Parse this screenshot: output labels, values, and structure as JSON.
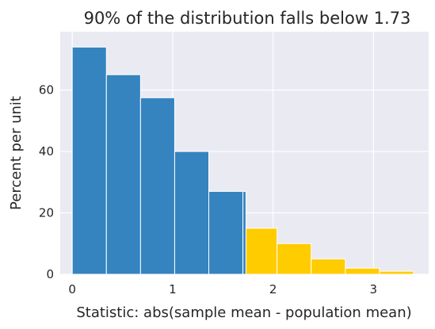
{
  "chart_data": {
    "type": "bar",
    "title": "90% of the distribution falls below 1.73",
    "xlabel": "Statistic: abs(sample mean - population mean)",
    "ylabel": "Percent per unit",
    "xlim": [
      -0.12,
      3.55
    ],
    "ylim": [
      0,
      79
    ],
    "xticks": [
      0,
      1,
      2,
      3
    ],
    "yticks": [
      0,
      20,
      40,
      60
    ],
    "grid": true,
    "background_color": "#eaeaf2",
    "colors": {
      "below": "#3584c0",
      "above": "#ffcc00"
    },
    "threshold": 1.73,
    "bins": [
      {
        "left": 0.0,
        "right": 0.34,
        "value": 74,
        "group": "below"
      },
      {
        "left": 0.34,
        "right": 0.68,
        "value": 65,
        "group": "below"
      },
      {
        "left": 0.68,
        "right": 1.02,
        "value": 57.5,
        "group": "below"
      },
      {
        "left": 1.02,
        "right": 1.36,
        "value": 40,
        "group": "below"
      },
      {
        "left": 1.36,
        "right": 1.7,
        "value": 27,
        "group": "below"
      },
      {
        "left": 1.7,
        "right": 1.73,
        "value": 27,
        "group": "below"
      },
      {
        "left": 1.73,
        "right": 2.04,
        "value": 15,
        "group": "above"
      },
      {
        "left": 2.04,
        "right": 2.38,
        "value": 10,
        "group": "above"
      },
      {
        "left": 2.38,
        "right": 2.72,
        "value": 5,
        "group": "above"
      },
      {
        "left": 2.72,
        "right": 3.06,
        "value": 2,
        "group": "above"
      },
      {
        "left": 3.06,
        "right": 3.4,
        "value": 1,
        "group": "above"
      }
    ]
  }
}
